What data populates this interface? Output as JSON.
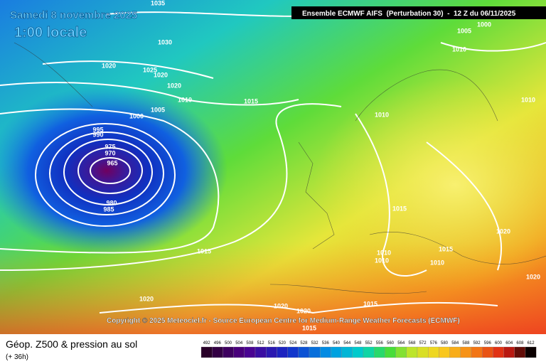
{
  "header": {
    "date": "Samedi 8 novembre 2025",
    "time": "1:00 locale",
    "run": "Ensemble ECMWF AIFS  (Perturbation 30)  -  12 Z du 06/11/2025"
  },
  "isobar_labels": [
    1035,
    1030,
    1020,
    1025,
    1020,
    1020,
    1010,
    1015,
    1005,
    1000,
    995,
    990,
    975,
    970,
    965,
    980,
    985,
    1015,
    1020,
    1000,
    1005,
    1010,
    1010,
    1010,
    1015,
    1020,
    1015,
    1010,
    1010,
    1010,
    1020,
    1020,
    1020,
    1015,
    1015
  ],
  "copyright": "Copyright © 2025 Meteociel.fr - Source European Centre for Medium-Range Weather Forecasts (ECMWF)",
  "footer": {
    "title": "Géop. Z500 & pression au sol",
    "lead": "(+ 36h)"
  },
  "legend": {
    "labels": [
      492,
      496,
      500,
      504,
      508,
      512,
      516,
      520,
      524,
      528,
      532,
      536,
      540,
      544,
      548,
      552,
      556,
      560,
      564,
      568,
      572,
      576,
      580,
      584,
      588,
      592,
      596,
      600,
      604,
      608,
      612
    ]
  }
}
